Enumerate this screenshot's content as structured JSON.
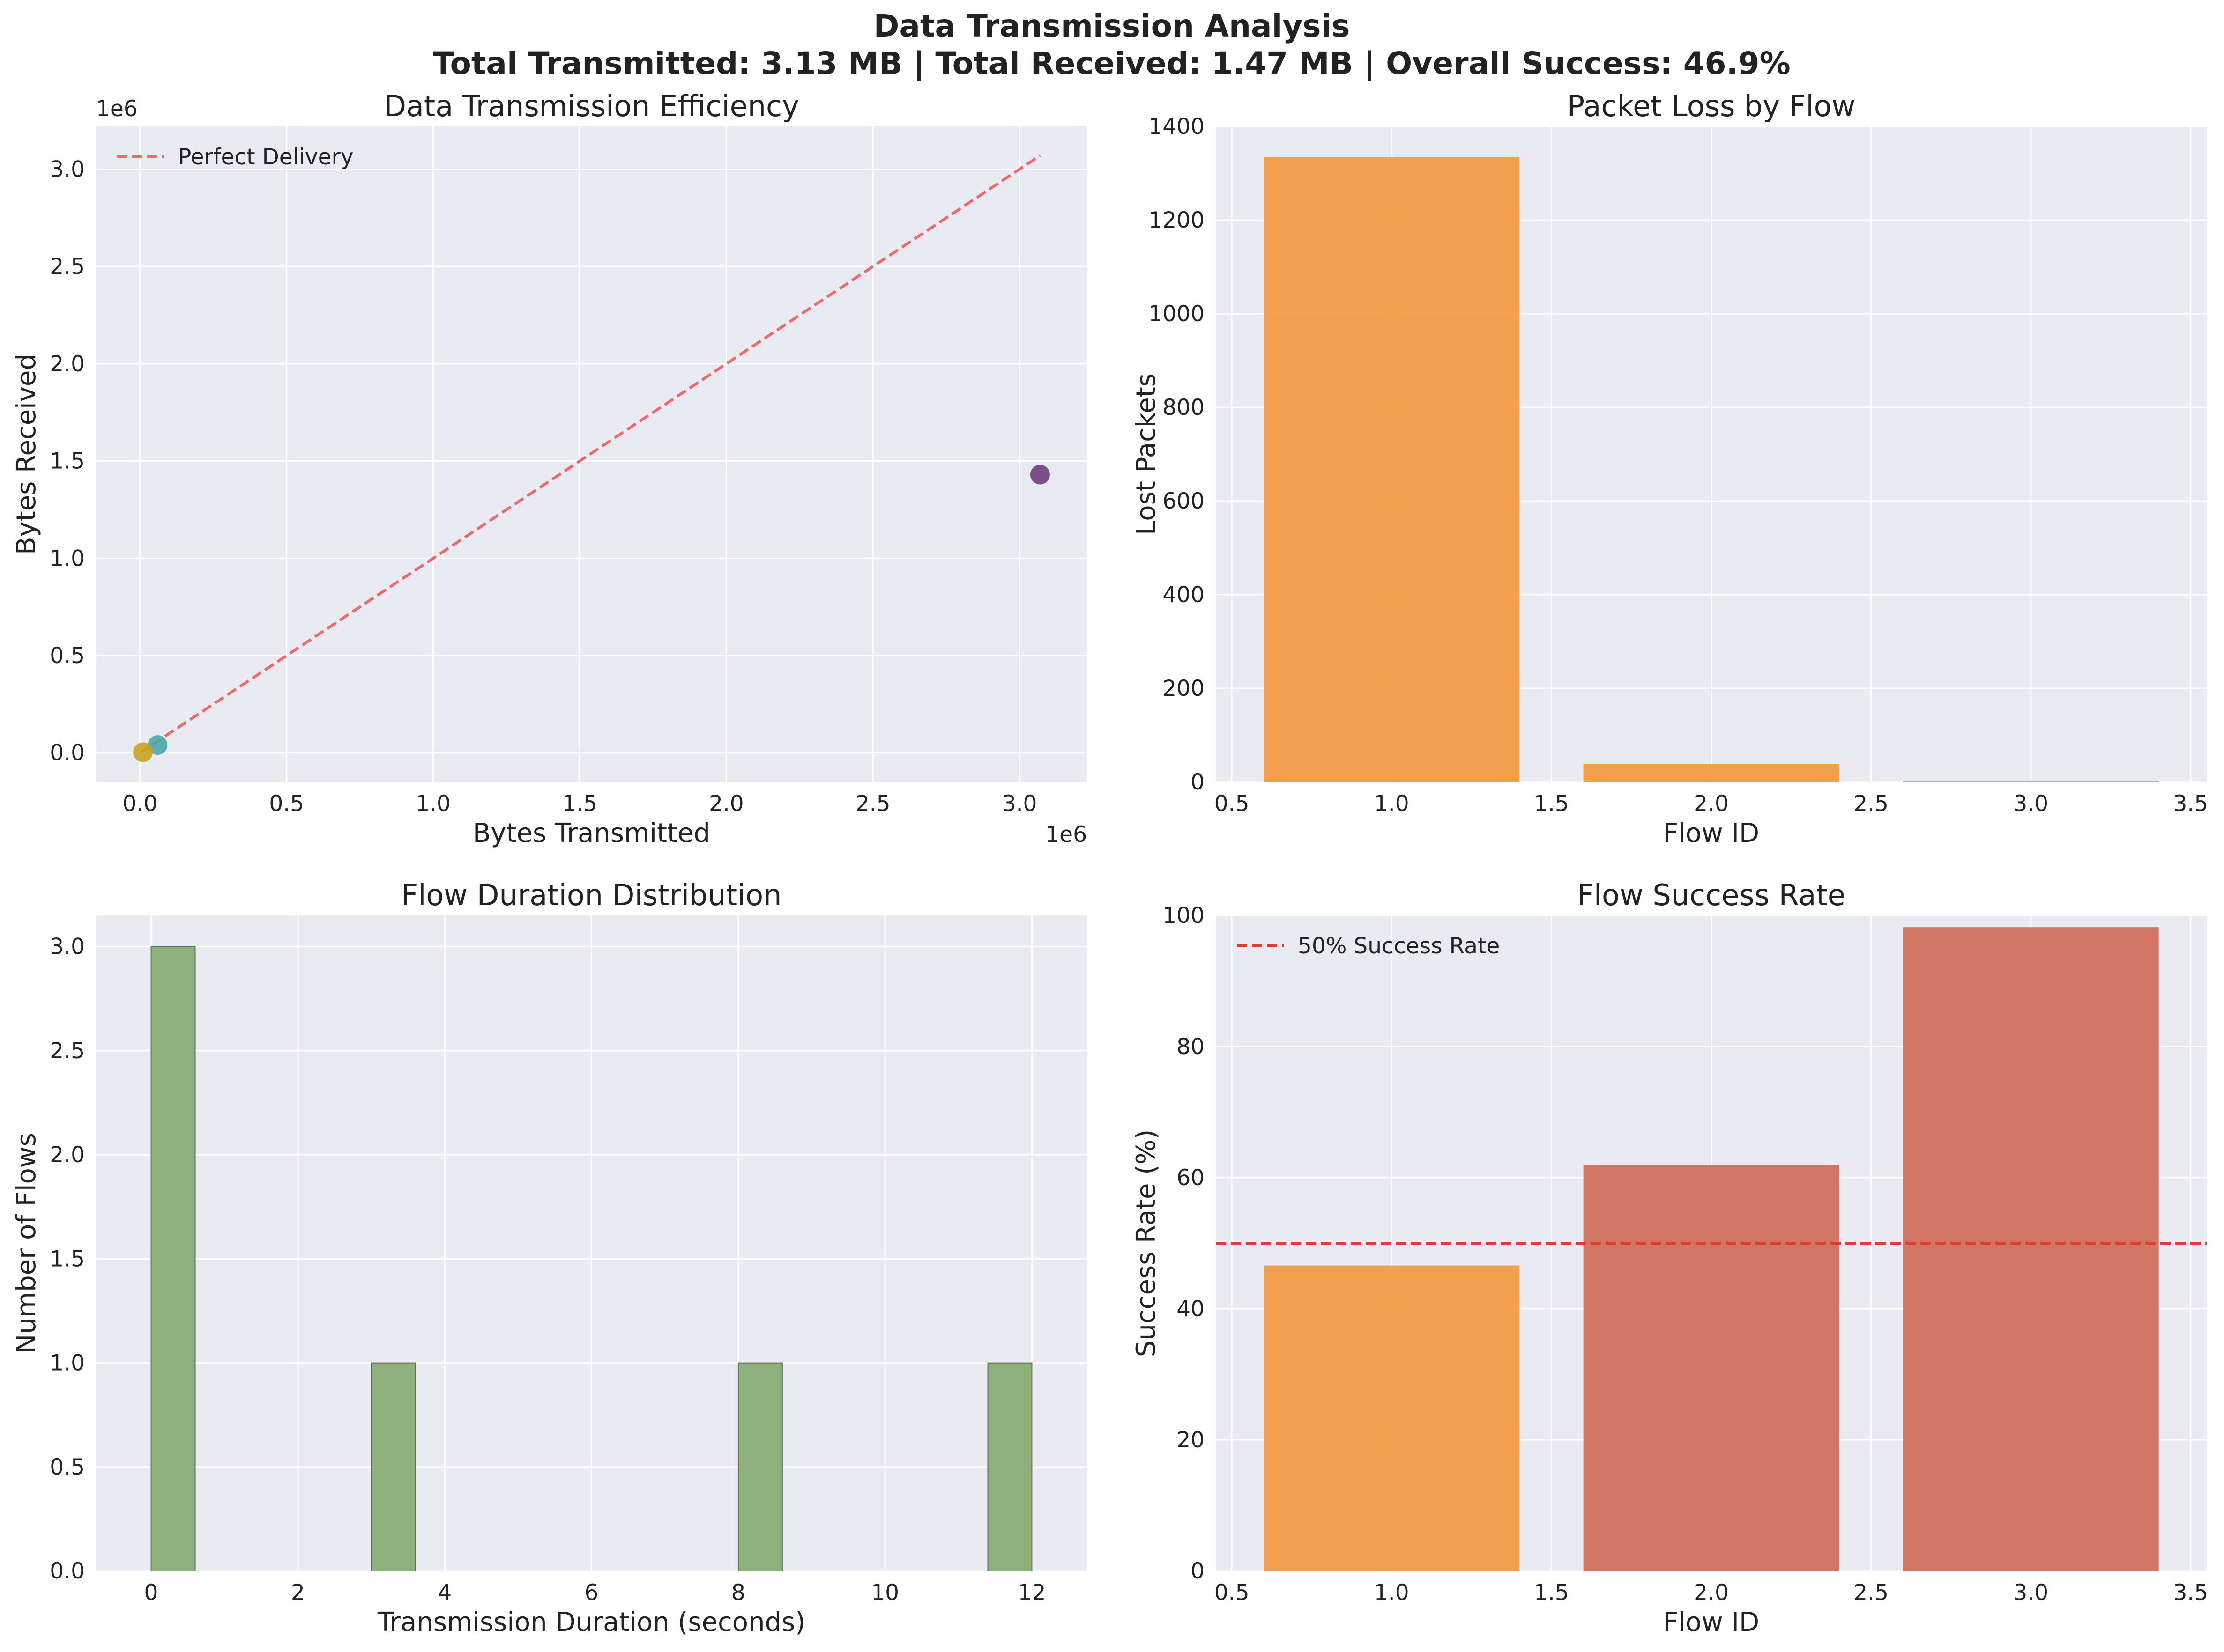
{
  "suptitle": {
    "line1": "Data Transmission Analysis",
    "line2": "Total Transmitted: 3.13 MB | Total Received: 1.47 MB | Overall Success: 46.9%"
  },
  "colors": {
    "axes_bg": "#eaeaf2",
    "grid": "#ffffff",
    "orange": "#f39c45",
    "red_bar": "#d1705b",
    "green_bar": "#8faf7c",
    "ref_red": "#ec6a6a",
    "ref_line_red": "#e53935",
    "pt_purple": "#6f3f7b",
    "pt_teal": "#4aa7a5",
    "pt_gold": "#c8a424"
  },
  "chart_data": [
    {
      "id": "efficiency",
      "type": "scatter",
      "title": "Data Transmission Efficiency",
      "xlabel": "Bytes Transmitted",
      "ylabel": "Bytes Received",
      "x_offset_label": "1e6",
      "y_offset_label": "1e6",
      "xlim": [
        -0.15,
        3.23
      ],
      "ylim": [
        -0.15,
        3.22
      ],
      "xticks": [
        0.0,
        0.5,
        1.0,
        1.5,
        2.0,
        2.5,
        3.0
      ],
      "xtick_labels": [
        "0.0",
        "0.5",
        "1.0",
        "1.5",
        "2.0",
        "2.5",
        "3.0"
      ],
      "yticks": [
        0.0,
        0.5,
        1.0,
        1.5,
        2.0,
        2.5,
        3.0
      ],
      "ytick_labels": [
        "0.0",
        "0.5",
        "1.0",
        "1.5",
        "2.0",
        "2.5",
        "3.0"
      ],
      "points": [
        {
          "x": 3.07,
          "y": 1.43,
          "color": "#6f3f7b"
        },
        {
          "x": 0.06,
          "y": 0.04,
          "color": "#4aa7a5"
        },
        {
          "x": 0.01,
          "y": 0.003,
          "color": "#c8a424"
        }
      ],
      "reference_line": {
        "name": "Perfect Delivery",
        "x": [
          0.0,
          3.07
        ],
        "y": [
          0.0,
          3.07
        ]
      },
      "legend": "top-left",
      "grid": true
    },
    {
      "id": "packet_loss",
      "type": "bar",
      "title": "Packet Loss by Flow",
      "xlabel": "Flow ID",
      "ylabel": "Lost Packets",
      "xlim": [
        0.45,
        3.55
      ],
      "ylim": [
        0,
        1400
      ],
      "xticks": [
        0.5,
        1.0,
        1.5,
        2.0,
        2.5,
        3.0,
        3.5
      ],
      "xtick_labels": [
        "0.5",
        "1.0",
        "1.5",
        "2.0",
        "2.5",
        "3.0",
        "3.5"
      ],
      "yticks": [
        0,
        200,
        400,
        600,
        800,
        1000,
        1200,
        1400
      ],
      "ytick_labels": [
        "0",
        "200",
        "400",
        "600",
        "800",
        "1000",
        "1200",
        "1400"
      ],
      "bars": [
        {
          "x": 1,
          "value": 1335,
          "color": "#f39c45"
        },
        {
          "x": 2,
          "value": 38,
          "color": "#f39c45"
        },
        {
          "x": 3,
          "value": 3,
          "color": "#f39c45"
        }
      ],
      "bar_width": 0.8,
      "grid": true
    },
    {
      "id": "duration",
      "type": "bar",
      "title": "Flow Duration Distribution",
      "xlabel": "Transmission Duration (seconds)",
      "ylabel": "Number of Flows",
      "xlim": [
        -0.75,
        12.75
      ],
      "ylim": [
        0,
        3.15
      ],
      "xticks": [
        0,
        2,
        4,
        6,
        8,
        10,
        12
      ],
      "xtick_labels": [
        "0",
        "2",
        "4",
        "6",
        "8",
        "10",
        "12"
      ],
      "yticks": [
        0.0,
        0.5,
        1.0,
        1.5,
        2.0,
        2.5,
        3.0
      ],
      "ytick_labels": [
        "0.0",
        "0.5",
        "1.0",
        "1.5",
        "2.0",
        "2.5",
        "3.0"
      ],
      "bins": [
        {
          "start": 0.0,
          "end": 0.6,
          "value": 3
        },
        {
          "start": 3.0,
          "end": 3.6,
          "value": 1
        },
        {
          "start": 8.0,
          "end": 8.6,
          "value": 1
        },
        {
          "start": 11.4,
          "end": 12.0,
          "value": 1
        }
      ],
      "grid": true
    },
    {
      "id": "success_rate",
      "type": "bar",
      "title": "Flow Success Rate",
      "xlabel": "Flow ID",
      "ylabel": "Success Rate (%)",
      "xlim": [
        0.45,
        3.55
      ],
      "ylim": [
        0,
        100
      ],
      "xticks": [
        0.5,
        1.0,
        1.5,
        2.0,
        2.5,
        3.0,
        3.5
      ],
      "xtick_labels": [
        "0.5",
        "1.0",
        "1.5",
        "2.0",
        "2.5",
        "3.0",
        "3.5"
      ],
      "yticks": [
        0,
        20,
        40,
        60,
        80,
        100
      ],
      "ytick_labels": [
        "0",
        "20",
        "40",
        "60",
        "80",
        "100"
      ],
      "bars": [
        {
          "x": 1,
          "value": 46.6,
          "color": "#f39c45"
        },
        {
          "x": 2,
          "value": 62.0,
          "color": "#d1705b"
        },
        {
          "x": 3,
          "value": 98.2,
          "color": "#d1705b"
        }
      ],
      "bar_width": 0.8,
      "reference_hline": {
        "name": "50% Success Rate",
        "y": 50
      },
      "legend": "top-left",
      "grid": true
    }
  ]
}
